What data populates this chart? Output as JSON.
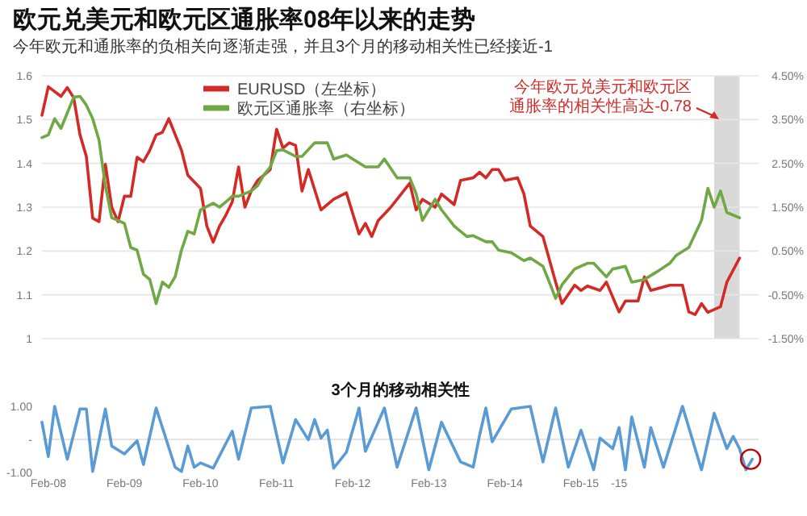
{
  "chart_data": [
    {
      "type": "line",
      "title": "欧元兑美元和欧元区通胀率08年以来的走势",
      "subtitle": "今年欧元和通胀率的负相关向逐渐走强，并且3个月的移动相关性已经接近-1",
      "annotations": [
        "今年欧元兑美元和欧元区通胀率的相关性高达-0.78"
      ],
      "xlim": [
        "2008-01",
        "2017-06"
      ],
      "ylim": [
        1,
        1.6
      ],
      "yticks": [
        1,
        1.1,
        1.2,
        1.3,
        1.4,
        1.5,
        1.6
      ],
      "y2lim": [
        -1.5,
        4.5
      ],
      "y2ticks": [
        {
          "value": 4.5,
          "label": "4.50%"
        },
        {
          "value": 3.5,
          "label": "3.50%"
        },
        {
          "value": 2.5,
          "label": "2.50%"
        },
        {
          "value": 1.5,
          "label": "1.50%"
        },
        {
          "value": 0.5,
          "label": "0.50%"
        },
        {
          "value": -0.5,
          "label": "-0.50%"
        },
        {
          "value": -1.5,
          "label": "-1.50%"
        }
      ],
      "tick_labels": "y",
      "grid": "y",
      "legend": "top",
      "bands": [
        {
          "axis": "x",
          "from": "2016-11",
          "to": "2017-03",
          "color": "#d9d9d9"
        }
      ],
      "series": [
        {
          "name": "EURUSD（左坐标）",
          "color": "#d42a26",
          "x": [
            "2008-01",
            "2008-02",
            "2008-04",
            "2008-05",
            "2008-06",
            "2008-07",
            "2008-08",
            "2008-09",
            "2008-10",
            "2008-11",
            "2008-12",
            "2009-01",
            "2009-02",
            "2009-03",
            "2009-04",
            "2009-05",
            "2009-06",
            "2009-07",
            "2009-08",
            "2009-09",
            "2009-11",
            "2009-12",
            "2010-02",
            "2010-03",
            "2010-04",
            "2010-05",
            "2010-06",
            "2010-07",
            "2010-08",
            "2010-09",
            "2010-10",
            "2010-11",
            "2011-01",
            "2011-02",
            "2011-03",
            "2011-04",
            "2011-05",
            "2011-06",
            "2011-07",
            "2011-09",
            "2011-11",
            "2012-01",
            "2012-03",
            "2012-04",
            "2012-05",
            "2012-06",
            "2012-08",
            "2012-11",
            "2012-12",
            "2013-01",
            "2013-03",
            "2013-04",
            "2013-06",
            "2013-07",
            "2013-09",
            "2013-10",
            "2013-11",
            "2013-12",
            "2014-01",
            "2014-02",
            "2014-04",
            "2014-05",
            "2014-06",
            "2014-07",
            "2014-08",
            "2014-10",
            "2014-11",
            "2015-01",
            "2015-02",
            "2015-03",
            "2015-05",
            "2015-06",
            "2015-08",
            "2015-09",
            "2015-11",
            "2015-12",
            "2016-01",
            "2016-04",
            "2016-06",
            "2016-07",
            "2016-08",
            "2016-09",
            "2016-10",
            "2016-12",
            "2017-01",
            "2017-03"
          ],
          "values": [
            1.51,
            1.575,
            1.553,
            1.573,
            1.55,
            1.465,
            1.416,
            1.275,
            1.267,
            1.398,
            1.3,
            1.267,
            1.325,
            1.325,
            1.414,
            1.404,
            1.43,
            1.465,
            1.471,
            1.502,
            1.43,
            1.373,
            1.343,
            1.257,
            1.22,
            1.257,
            1.282,
            1.312,
            1.392,
            1.3,
            1.337,
            1.361,
            1.386,
            1.478,
            1.435,
            1.447,
            1.441,
            1.337,
            1.386,
            1.294,
            1.318,
            1.333,
            1.239,
            1.263,
            1.233,
            1.269,
            1.3,
            1.355,
            1.294,
            1.318,
            1.3,
            1.33,
            1.306,
            1.361,
            1.367,
            1.38,
            1.367,
            1.386,
            1.386,
            1.361,
            1.367,
            1.33,
            1.257,
            1.245,
            1.233,
            1.129,
            1.08,
            1.122,
            1.11,
            1.12,
            1.11,
            1.129,
            1.061,
            1.086,
            1.086,
            1.141,
            1.11,
            1.122,
            1.122,
            1.061,
            1.055,
            1.08,
            1.06,
            1.073,
            1.129,
            1.184
          ]
        },
        {
          "name": "欧元区通胀率（右坐标）",
          "color": "#70a845",
          "axis": "y2",
          "x": [
            "2008-01",
            "2008-02",
            "2008-03",
            "2008-04",
            "2008-06",
            "2008-07",
            "2008-08",
            "2008-09",
            "2008-10",
            "2008-11",
            "2008-12",
            "2009-01",
            "2009-02",
            "2009-03",
            "2009-04",
            "2009-05",
            "2009-06",
            "2009-07",
            "2009-08",
            "2009-09",
            "2009-10",
            "2009-11",
            "2009-12",
            "2010-01",
            "2010-02",
            "2010-04",
            "2010-05",
            "2010-06",
            "2010-07",
            "2010-08",
            "2010-10",
            "2010-11",
            "2010-12",
            "2011-01",
            "2011-02",
            "2011-03",
            "2011-05",
            "2011-06",
            "2011-08",
            "2011-10",
            "2011-11",
            "2012-01",
            "2012-04",
            "2012-06",
            "2012-07",
            "2012-09",
            "2012-11",
            "2012-12",
            "2013-01",
            "2013-03",
            "2013-04",
            "2013-06",
            "2013-08",
            "2013-09",
            "2013-11",
            "2013-12",
            "2014-01",
            "2014-03",
            "2014-05",
            "2014-06",
            "2014-08",
            "2014-09",
            "2014-10",
            "2014-11",
            "2015-01",
            "2015-03",
            "2015-04",
            "2015-06",
            "2015-07",
            "2015-09",
            "2015-10",
            "2015-12",
            "2016-02",
            "2016-04",
            "2016-05",
            "2016-07",
            "2016-09",
            "2016-10",
            "2016-11",
            "2016-12",
            "2017-01",
            "2017-03"
          ],
          "values": [
            3.09,
            3.15,
            3.52,
            3.3,
            4.01,
            4.03,
            3.83,
            3.52,
            3.03,
            1.99,
            1.26,
            1.2,
            1.13,
            0.58,
            0.52,
            -0.03,
            -0.15,
            -0.7,
            -0.21,
            -0.33,
            -0.09,
            0.52,
            0.95,
            0.89,
            1.44,
            1.59,
            1.5,
            1.62,
            1.75,
            1.75,
            1.87,
            1.99,
            2.24,
            2.42,
            2.79,
            2.81,
            2.66,
            2.66,
            2.97,
            2.97,
            2.6,
            2.69,
            2.42,
            2.42,
            2.6,
            2.17,
            2.17,
            1.81,
            1.2,
            1.68,
            1.44,
            1.07,
            0.83,
            0.85,
            0.71,
            0.71,
            0.52,
            0.46,
            0.28,
            0.34,
            0.15,
            -0.21,
            -0.58,
            -0.27,
            0.09,
            0.22,
            0.22,
            -0.09,
            0.09,
            0.15,
            -0.21,
            -0.15,
            0.03,
            0.22,
            0.4,
            0.58,
            1.2,
            1.93,
            1.5,
            1.87,
            1.38,
            1.26
          ]
        }
      ]
    },
    {
      "type": "line",
      "title": "3个月的移动相关性",
      "xlim": [
        "2008-01",
        "2017-06"
      ],
      "ylim": [
        -1,
        1
      ],
      "yticks": [
        {
          "value": 1,
          "label": "1.00"
        },
        {
          "value": 0,
          "label": "-"
        },
        {
          "value": -1,
          "label": "-1.00"
        }
      ],
      "xticks": [
        {
          "value": "2008-02",
          "label": "Feb-08"
        },
        {
          "value": "2009-02",
          "label": "Feb-09"
        },
        {
          "value": "2010-02",
          "label": "Feb-10"
        },
        {
          "value": "2011-02",
          "label": "Feb-11"
        },
        {
          "value": "2012-02",
          "label": "Feb-12"
        },
        {
          "value": "2013-02",
          "label": "Feb-13"
        },
        {
          "value": "2014-02",
          "label": "Feb-14"
        },
        {
          "value": "2015-02",
          "label": "Feb-15"
        },
        {
          "value": "2015-08",
          "label": "-15"
        }
      ],
      "ref_lines": [
        {
          "axis": "y",
          "value": 0,
          "color": "#e3e3e3"
        }
      ],
      "series": [
        {
          "color": "#5b9bd5",
          "x": [
            "2008-01",
            "2008-02",
            "2008-03",
            "2008-05",
            "2008-07",
            "2008-08",
            "2008-09",
            "2008-11",
            "2008-12",
            "2009-02",
            "2009-04",
            "2009-05",
            "2009-07",
            "2009-10",
            "2009-11",
            "2009-12",
            "2010-01",
            "2010-02",
            "2010-04",
            "2010-07",
            "2010-08",
            "2010-10",
            "2011-01",
            "2011-03",
            "2011-05",
            "2011-07",
            "2011-08",
            "2011-09",
            "2011-10",
            "2011-11",
            "2012-01",
            "2012-03",
            "2012-04",
            "2012-07",
            "2012-09",
            "2012-12",
            "2013-02",
            "2013-04",
            "2013-07",
            "2013-09",
            "2013-10",
            "2013-11",
            "2013-12",
            "2014-03",
            "2014-06",
            "2014-08",
            "2014-10",
            "2014-12",
            "2015-02",
            "2015-04",
            "2015-05",
            "2015-07",
            "2015-08",
            "2015-09",
            "2015-10",
            "2015-12",
            "2016-01",
            "2016-03",
            "2016-06",
            "2016-09",
            "2016-11",
            "2017-01",
            "2017-02",
            "2017-03",
            "2017-04",
            "2017-05"
          ],
          "values": [
            0.52,
            -0.52,
            1,
            -0.6,
            0.92,
            0.92,
            -0.97,
            0.92,
            -0.2,
            -0.44,
            -0.04,
            -0.76,
            0.95,
            -0.84,
            -0.97,
            -0.2,
            -0.84,
            -0.71,
            -0.87,
            0.25,
            -0.6,
            0.95,
            1,
            -0.71,
            0.6,
            -0.01,
            0.6,
            0.04,
            0.28,
            -0.87,
            -0.39,
            0.95,
            -0.36,
            0.95,
            -0.84,
            0.95,
            -0.92,
            0.52,
            -0.68,
            -0.84,
            0.12,
            0.95,
            -0.07,
            0.92,
            1,
            -0.68,
            0.95,
            -0.84,
            0.28,
            -0.92,
            0.04,
            -0.28,
            0.36,
            -0.92,
            0.68,
            -0.84,
            0.36,
            -0.84,
            1,
            -0.92,
            0.79,
            -0.28,
            0.09,
            -0.28,
            -0.92,
            -0.6
          ]
        }
      ]
    }
  ]
}
